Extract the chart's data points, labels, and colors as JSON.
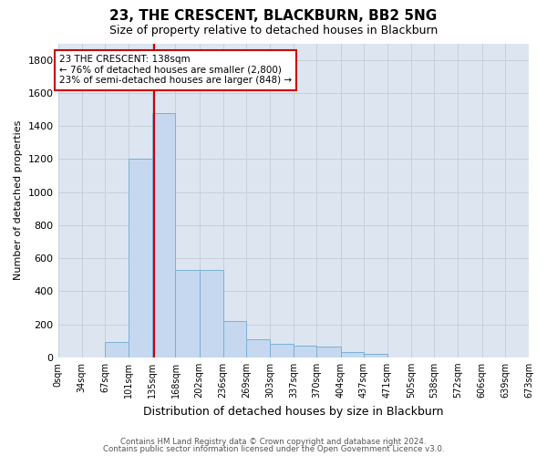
{
  "title": "23, THE CRESCENT, BLACKBURN, BB2 5NG",
  "subtitle": "Size of property relative to detached houses in Blackburn",
  "xlabel": "Distribution of detached houses by size in Blackburn",
  "ylabel": "Number of detached properties",
  "bin_edges": [
    0,
    34,
    67,
    101,
    135,
    168,
    202,
    236,
    269,
    303,
    337,
    370,
    404,
    437,
    471,
    505,
    538,
    572,
    606,
    639,
    673
  ],
  "bar_heights": [
    0,
    0,
    90,
    1200,
    1480,
    530,
    530,
    220,
    110,
    80,
    70,
    65,
    30,
    20,
    0,
    0,
    0,
    0,
    0,
    0
  ],
  "bar_color": "#c5d8ef",
  "bar_edgecolor": "#7bafd4",
  "grid_color": "#c8cfd8",
  "background_color": "#dde6f0",
  "property_sqm": 138,
  "property_line_color": "#cc0000",
  "annotation_text": "23 THE CRESCENT: 138sqm\n← 76% of detached houses are smaller (2,800)\n23% of semi-detached houses are larger (848) →",
  "annotation_box_edgecolor": "#cc0000",
  "ylim": [
    0,
    1900
  ],
  "yticks": [
    0,
    200,
    400,
    600,
    800,
    1000,
    1200,
    1400,
    1600,
    1800
  ],
  "footer_line1": "Contains HM Land Registry data © Crown copyright and database right 2024.",
  "footer_line2": "Contains public sector information licensed under the Open Government Licence v3.0.",
  "title_fontsize": 11,
  "subtitle_fontsize": 9,
  "ylabel_fontsize": 8,
  "xlabel_fontsize": 9,
  "ytick_fontsize": 8,
  "xtick_fontsize": 7
}
